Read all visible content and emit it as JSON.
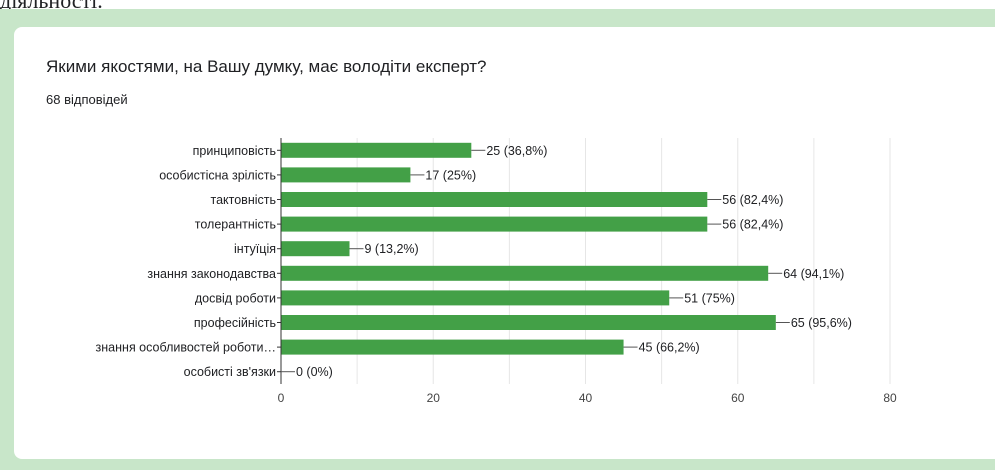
{
  "page": {
    "top_text": "діяльності.",
    "question": "Якими якостями, на Вашу думку, має володіти експерт?",
    "responses": "68 відповідей"
  },
  "colors": {
    "bar": "#43a047",
    "frame": "#c8e6c9",
    "grid": "#e6e6e6",
    "axis": "#333333"
  },
  "chart_data": {
    "type": "bar",
    "orientation": "horizontal",
    "categories": [
      "принциповість",
      "особистісна зрілість",
      "тактовність",
      "толерантність",
      "інтуїція",
      "знання законодавства",
      "досвід роботи",
      "професійність",
      "знання особливостей роботи…",
      "особисті зв'язки"
    ],
    "values": [
      25,
      17,
      56,
      56,
      9,
      64,
      51,
      65,
      45,
      0
    ],
    "data_labels": [
      "25 (36,8%)",
      "17 (25%)",
      "56 (82,4%)",
      "56 (82,4%)",
      "9 (13,2%)",
      "64 (94,1%)",
      "51 (75%)",
      "65 (95,6%)",
      "45 (66,2%)",
      "0 (0%)"
    ],
    "xlim": [
      0,
      80
    ],
    "xticks": [
      0,
      20,
      40,
      60,
      80
    ],
    "grid": true,
    "legend": false
  }
}
